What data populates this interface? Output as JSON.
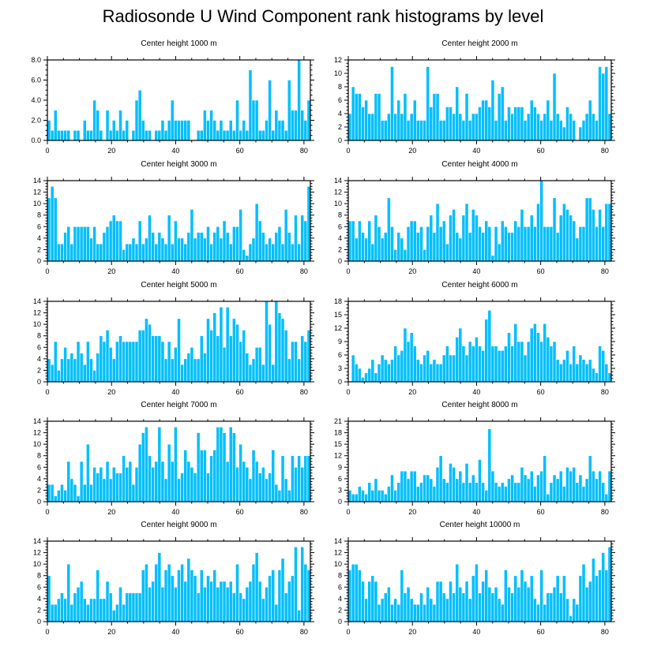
{
  "figure_title": "Radiosonde U Wind Component rank histograms by level",
  "colors": {
    "bar": "#00bfff",
    "frame": "#000000",
    "background": "#ffffff"
  },
  "chart_data": [
    {
      "type": "bar",
      "title": "Center height 1000 m",
      "xlim": [
        0,
        82
      ],
      "ylim": [
        0,
        8
      ],
      "yticks": [
        0,
        2,
        4,
        6,
        8
      ],
      "ytick_labels": [
        "0.0",
        "2.0",
        "4.0",
        "6.0",
        "8.0"
      ],
      "xticks": [
        0,
        20,
        40,
        60,
        80
      ],
      "xtick_labels": [
        "0",
        "20",
        "40",
        "60",
        "80"
      ],
      "values": [
        2,
        1,
        3,
        1,
        1,
        1,
        1,
        0,
        1,
        1,
        0,
        2,
        1,
        1,
        4,
        3,
        1,
        0,
        3,
        1,
        2,
        1,
        3,
        1,
        2,
        0,
        1,
        4,
        5,
        2,
        1,
        1,
        0,
        1,
        1,
        2,
        1,
        2,
        4,
        2,
        2,
        2,
        2,
        2,
        0,
        0,
        1,
        1,
        3,
        2,
        3,
        2,
        1,
        2,
        1,
        1,
        2,
        1,
        4,
        1,
        2,
        1,
        7,
        4,
        4,
        1,
        1,
        2,
        6,
        1,
        3,
        2,
        2,
        1,
        6,
        3,
        3,
        8,
        3,
        2,
        4
      ]
    },
    {
      "type": "bar",
      "title": "Center height 2000 m",
      "xlim": [
        0,
        82
      ],
      "ylim": [
        0,
        12
      ],
      "yticks": [
        0,
        2,
        4,
        6,
        8,
        10,
        12
      ],
      "ytick_labels": [
        "0",
        "2",
        "4",
        "6",
        "8",
        "10",
        "12"
      ],
      "xticks": [
        0,
        20,
        40,
        60,
        80
      ],
      "xtick_labels": [
        "0",
        "20",
        "40",
        "60",
        "80"
      ],
      "values": [
        4,
        8,
        7,
        7,
        5,
        6,
        4,
        4,
        7,
        7,
        3,
        3,
        4,
        11,
        4,
        6,
        4,
        7,
        3,
        4,
        6,
        3,
        3,
        3,
        11,
        5,
        7,
        7,
        3,
        3,
        5,
        5,
        4,
        8,
        4,
        3,
        7,
        3,
        4,
        4,
        5,
        6,
        6,
        5,
        9,
        3,
        7,
        8,
        3,
        5,
        4,
        5,
        5,
        5,
        3,
        4,
        6,
        5,
        4,
        3,
        4,
        6,
        3,
        10,
        4,
        3,
        2,
        5,
        4,
        3,
        0,
        2,
        3,
        4,
        6,
        4,
        3,
        11,
        10,
        11,
        4
      ]
    },
    {
      "type": "bar",
      "title": "Center height 3000 m",
      "xlim": [
        0,
        82
      ],
      "ylim": [
        0,
        14
      ],
      "yticks": [
        0,
        2,
        4,
        6,
        8,
        10,
        12,
        14
      ],
      "ytick_labels": [
        "0",
        "2",
        "4",
        "6",
        "8",
        "10",
        "12",
        "14"
      ],
      "xticks": [
        0,
        20,
        40,
        60,
        80
      ],
      "xtick_labels": [
        "0",
        "20",
        "40",
        "60",
        "80"
      ],
      "values": [
        11,
        13,
        11,
        3,
        3,
        5,
        6,
        3,
        6,
        6,
        6,
        6,
        6,
        4,
        6,
        3,
        3,
        5,
        6,
        7,
        8,
        7,
        7,
        2,
        3,
        3,
        4,
        3,
        7,
        3,
        4,
        8,
        5,
        3,
        5,
        4,
        3,
        8,
        3,
        7,
        4,
        4,
        3,
        5,
        9,
        4,
        5,
        5,
        4,
        6,
        3,
        5,
        6,
        4,
        7,
        5,
        3,
        6,
        6,
        9,
        2,
        1,
        3,
        4,
        10,
        7,
        5,
        3,
        4,
        3,
        5,
        6,
        3,
        9,
        5,
        3,
        8,
        3,
        8,
        7,
        13
      ]
    },
    {
      "type": "bar",
      "title": "Center height 4000 m",
      "xlim": [
        0,
        82
      ],
      "ylim": [
        0,
        14
      ],
      "yticks": [
        0,
        2,
        4,
        6,
        8,
        10,
        12,
        14
      ],
      "ytick_labels": [
        "0",
        "2",
        "4",
        "6",
        "8",
        "10",
        "12",
        "14"
      ],
      "xticks": [
        0,
        20,
        40,
        60,
        80
      ],
      "xtick_labels": [
        "0",
        "20",
        "40",
        "60",
        "80"
      ],
      "values": [
        7,
        7,
        4,
        7,
        5,
        4,
        7,
        3,
        8,
        6,
        4,
        5,
        11,
        6,
        2,
        5,
        4,
        2,
        6,
        7,
        7,
        5,
        6,
        2,
        6,
        8,
        5,
        10,
        6,
        7,
        3,
        8,
        9,
        5,
        4,
        8,
        10,
        5,
        9,
        8,
        6,
        5,
        7,
        6,
        1,
        6,
        3,
        7,
        6,
        5,
        5,
        7,
        6,
        9,
        6,
        6,
        8,
        6,
        10,
        14,
        6,
        6,
        6,
        11,
        5,
        8,
        10,
        9,
        8,
        7,
        4,
        6,
        6,
        11,
        11,
        9,
        6,
        9,
        6,
        10,
        10
      ]
    },
    {
      "type": "bar",
      "title": "Center height 5000 m",
      "xlim": [
        0,
        82
      ],
      "ylim": [
        0,
        14
      ],
      "yticks": [
        0,
        2,
        4,
        6,
        8,
        10,
        12,
        14
      ],
      "ytick_labels": [
        "0",
        "2",
        "4",
        "6",
        "8",
        "10",
        "12",
        "14"
      ],
      "xticks": [
        0,
        20,
        40,
        60,
        80
      ],
      "xtick_labels": [
        "0",
        "20",
        "40",
        "60",
        "80"
      ],
      "values": [
        4,
        3,
        7,
        2,
        4,
        6,
        4,
        5,
        4,
        7,
        5,
        3,
        7,
        4,
        2,
        5,
        8,
        7,
        9,
        6,
        4,
        7,
        8,
        7,
        7,
        7,
        7,
        7,
        9,
        9,
        11,
        10,
        8,
        8,
        8,
        7,
        4,
        7,
        4,
        6,
        11,
        3,
        4,
        5,
        6,
        4,
        4,
        8,
        5,
        11,
        9,
        12,
        8,
        13,
        6,
        13,
        8,
        11,
        10,
        7,
        9,
        5,
        3,
        4,
        6,
        6,
        3,
        14,
        10,
        3,
        14,
        12,
        11,
        9,
        4,
        7,
        7,
        4,
        8,
        7,
        9
      ]
    },
    {
      "type": "bar",
      "title": "Center height 6000 m",
      "xlim": [
        0,
        82
      ],
      "ylim": [
        0,
        18
      ],
      "yticks": [
        0,
        3,
        6,
        9,
        12,
        15,
        18
      ],
      "ytick_labels": [
        "0",
        "3",
        "6",
        "9",
        "12",
        "15",
        "18"
      ],
      "xticks": [
        0,
        20,
        40,
        60,
        80
      ],
      "xtick_labels": [
        "0",
        "20",
        "40",
        "60",
        "80"
      ],
      "values": [
        0,
        6,
        4,
        3,
        1,
        2,
        3,
        5,
        2,
        4,
        6,
        5,
        4,
        5,
        8,
        6,
        7,
        12,
        9,
        11,
        8,
        5,
        4,
        6,
        7,
        4,
        5,
        4,
        4,
        6,
        8,
        6,
        6,
        10,
        12,
        8,
        6,
        9,
        8,
        10,
        8,
        7,
        14,
        16,
        8,
        8,
        7,
        7,
        8,
        11,
        8,
        13,
        9,
        9,
        6,
        9,
        12,
        13,
        11,
        9,
        13,
        10,
        8,
        9,
        5,
        4,
        5,
        7,
        4,
        8,
        4,
        6,
        5,
        4,
        5,
        3,
        2,
        8,
        7,
        4,
        2
      ]
    },
    {
      "type": "bar",
      "title": "Center height 7000 m",
      "xlim": [
        0,
        82
      ],
      "ylim": [
        0,
        14
      ],
      "yticks": [
        0,
        2,
        4,
        6,
        8,
        10,
        12,
        14
      ],
      "ytick_labels": [
        "0",
        "2",
        "4",
        "6",
        "8",
        "10",
        "12",
        "14"
      ],
      "xticks": [
        0,
        20,
        40,
        60,
        80
      ],
      "xtick_labels": [
        "0",
        "20",
        "40",
        "60",
        "80"
      ],
      "values": [
        3,
        3,
        1,
        2,
        3,
        2,
        7,
        4,
        3,
        1,
        7,
        3,
        10,
        3,
        6,
        5,
        6,
        4,
        7,
        4,
        6,
        5,
        5,
        8,
        6,
        7,
        3,
        6,
        10,
        12,
        13,
        8,
        6,
        7,
        13,
        7,
        4,
        10,
        7,
        13,
        4,
        5,
        9,
        7,
        6,
        5,
        12,
        9,
        9,
        5,
        8,
        9,
        13,
        13,
        12,
        7,
        13,
        12,
        6,
        10,
        7,
        6,
        4,
        9,
        7,
        5,
        6,
        4,
        5,
        9,
        3,
        2,
        8,
        4,
        2,
        8,
        6,
        8,
        6,
        8,
        8
      ]
    },
    {
      "type": "bar",
      "title": "Center height 8000 m",
      "xlim": [
        0,
        82
      ],
      "ylim": [
        0,
        21
      ],
      "yticks": [
        0,
        3,
        6,
        9,
        12,
        15,
        18,
        21
      ],
      "ytick_labels": [
        "0",
        "3",
        "6",
        "9",
        "12",
        "15",
        "18",
        "21"
      ],
      "xticks": [
        0,
        20,
        40,
        60,
        80
      ],
      "xtick_labels": [
        "0",
        "20",
        "40",
        "60",
        "80"
      ],
      "values": [
        3,
        2,
        2,
        4,
        3,
        2,
        5,
        3,
        6,
        3,
        3,
        2,
        4,
        7,
        3,
        5,
        8,
        8,
        6,
        8,
        8,
        4,
        5,
        7,
        7,
        6,
        4,
        9,
        12,
        6,
        5,
        10,
        9,
        6,
        8,
        5,
        10,
        5,
        7,
        5,
        11,
        5,
        3,
        19,
        8,
        5,
        4,
        5,
        4,
        6,
        7,
        5,
        5,
        9,
        7,
        6,
        8,
        4,
        7,
        8,
        12,
        2,
        5,
        7,
        6,
        8,
        4,
        9,
        8,
        9,
        5,
        7,
        4,
        6,
        12,
        8,
        6,
        8,
        5,
        2,
        8
      ]
    },
    {
      "type": "bar",
      "title": "Center height 9000 m",
      "xlim": [
        0,
        82
      ],
      "ylim": [
        0,
        14
      ],
      "yticks": [
        0,
        2,
        4,
        6,
        8,
        10,
        12,
        14
      ],
      "ytick_labels": [
        "0",
        "2",
        "4",
        "6",
        "8",
        "10",
        "12",
        "14"
      ],
      "xticks": [
        0,
        20,
        40,
        60,
        80
      ],
      "xtick_labels": [
        "0",
        "20",
        "40",
        "60",
        "80"
      ],
      "values": [
        8,
        3,
        3,
        4,
        5,
        4,
        10,
        3,
        5,
        6,
        7,
        4,
        3,
        4,
        4,
        9,
        4,
        4,
        7,
        5,
        2,
        3,
        6,
        3,
        5,
        5,
        5,
        5,
        5,
        9,
        10,
        6,
        7,
        10,
        12,
        6,
        9,
        10,
        8,
        6,
        9,
        10,
        7,
        11,
        9,
        8,
        5,
        9,
        6,
        8,
        7,
        9,
        6,
        7,
        7,
        6,
        7,
        5,
        10,
        5,
        4,
        6,
        7,
        10,
        12,
        7,
        4,
        6,
        8,
        9,
        3,
        9,
        11,
        5,
        7,
        8,
        13,
        2,
        13,
        10,
        9
      ]
    },
    {
      "type": "bar",
      "title": "Center height 10000 m",
      "xlim": [
        0,
        82
      ],
      "ylim": [
        0,
        14
      ],
      "yticks": [
        0,
        2,
        4,
        6,
        8,
        10,
        12,
        14
      ],
      "ytick_labels": [
        "0",
        "2",
        "4",
        "6",
        "8",
        "10",
        "12",
        "14"
      ],
      "xticks": [
        0,
        20,
        40,
        60,
        80
      ],
      "xtick_labels": [
        "0",
        "20",
        "40",
        "60",
        "80"
      ],
      "values": [
        9,
        10,
        10,
        9,
        7,
        4,
        7,
        8,
        7,
        3,
        4,
        5,
        6,
        3,
        4,
        3,
        9,
        5,
        6,
        4,
        3,
        3,
        5,
        3,
        6,
        4,
        3,
        7,
        7,
        5,
        4,
        7,
        5,
        10,
        6,
        5,
        7,
        4,
        8,
        10,
        5,
        7,
        9,
        6,
        5,
        6,
        4,
        3,
        9,
        6,
        5,
        8,
        6,
        9,
        7,
        6,
        8,
        4,
        3,
        9,
        3,
        5,
        5,
        6,
        8,
        5,
        8,
        4,
        1,
        4,
        3,
        8,
        10,
        6,
        7,
        11,
        8,
        9,
        12,
        9,
        13
      ]
    }
  ]
}
